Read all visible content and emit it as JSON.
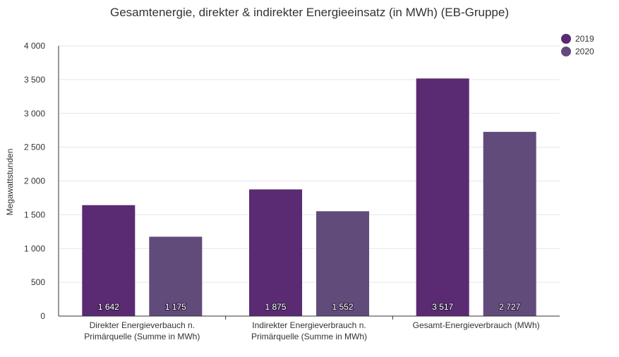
{
  "chart_data": {
    "type": "bar",
    "title": "Gesamtenergie, direkter & indirekter Energieeinsatz (in MWh) (EB-Gruppe)",
    "ylabel": "Megawattstunden",
    "xlabel": "",
    "ylim": [
      0,
      4000
    ],
    "yticks": [
      0,
      500,
      1000,
      1500,
      2000,
      2500,
      3000,
      3500,
      4000
    ],
    "ytick_labels": [
      "0",
      "500",
      "1 000",
      "1 500",
      "2 000",
      "2 500",
      "3 000",
      "3 500",
      "4 000"
    ],
    "categories": [
      [
        "Direkter Energieverbauch n.",
        "Primärquelle (Summe in MWh)"
      ],
      [
        "Indirekter Energieverbrauch n.",
        "Primärquelle (Summe in MWh)"
      ],
      [
        "Gesamt-Energieverbrauch (MWh)"
      ]
    ],
    "series": [
      {
        "name": "2019",
        "color": "#5a2a72",
        "values": [
          1642,
          1875,
          3517
        ],
        "labels": [
          "1 642",
          "1 875",
          "3 517"
        ]
      },
      {
        "name": "2020",
        "color": "#614b7b",
        "values": [
          1175,
          1552,
          2727
        ],
        "labels": [
          "1 175",
          "1 552",
          "2 727"
        ]
      }
    ],
    "grid": true,
    "legend_position": "top-right"
  }
}
